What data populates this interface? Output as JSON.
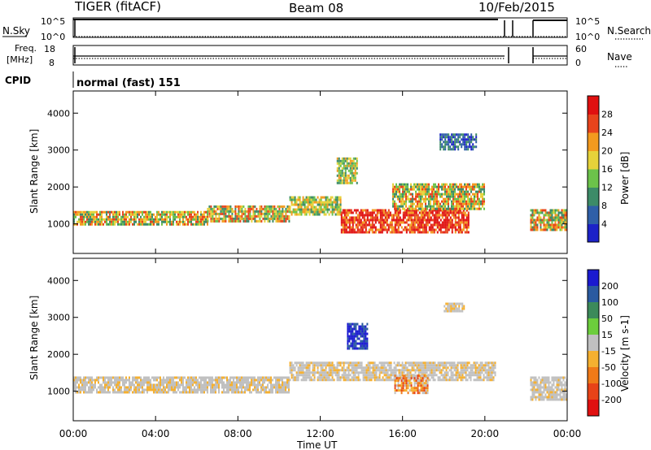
{
  "header": {
    "title": "TIGER (fitACF)",
    "beam": "Beam 08",
    "date": "10/Feb/2015"
  },
  "sky_panel": {
    "label": "N.Sky",
    "tick_top": "10^5",
    "tick_bottom": "10^0",
    "right_label": "N.Search",
    "right_tick_top": "10^5",
    "right_tick_bottom": "10^0"
  },
  "freq_panel": {
    "label_line1": "Freq.",
    "label_line2": "[MHz]",
    "tick_top": "18",
    "tick_bottom": "8",
    "right_label": "Nave",
    "right_tick_top": "60",
    "right_tick_bottom": "0"
  },
  "cpid_panel": {
    "label": "CPID",
    "mode": "normal (fast) 151"
  },
  "chart_data": [
    {
      "type": "heatmap",
      "ylabel": "Slant Range [km]",
      "y_ticks": [
        "1000",
        "2000",
        "3000",
        "4000"
      ],
      "ylim": [
        200,
        4600
      ],
      "xlim_hours": [
        0,
        24
      ],
      "colorbar": {
        "label": "Power [dB]",
        "ticks": [
          "4",
          "8",
          "12",
          "16",
          "20",
          "24",
          "28"
        ],
        "colors": [
          "#1c22c8",
          "#2f5fa8",
          "#3d8b68",
          "#6cc24a",
          "#e6d23a",
          "#f39a1e",
          "#e8441c",
          "#e01010"
        ]
      },
      "echo_regions": [
        {
          "t0": 0.0,
          "t1": 6.5,
          "r0": 1000,
          "r1": 1350,
          "level": "strong"
        },
        {
          "t0": 6.5,
          "t1": 10.5,
          "r0": 1050,
          "r1": 1500,
          "level": "strong"
        },
        {
          "t0": 10.5,
          "t1": 13.0,
          "r0": 1250,
          "r1": 1750,
          "level": "medium"
        },
        {
          "t0": 13.0,
          "t1": 19.2,
          "r0": 800,
          "r1": 1400,
          "level": "strongest"
        },
        {
          "t0": 15.5,
          "t1": 20.0,
          "r0": 1400,
          "r1": 2100,
          "level": "strong"
        },
        {
          "t0": 17.8,
          "t1": 19.6,
          "r0": 3050,
          "r1": 3450,
          "level": "weak"
        },
        {
          "t0": 12.8,
          "t1": 13.8,
          "r0": 2100,
          "r1": 2800,
          "level": "medium"
        },
        {
          "t0": 22.2,
          "t1": 24.0,
          "r0": 850,
          "r1": 1400,
          "level": "strong"
        }
      ]
    },
    {
      "type": "heatmap",
      "ylabel": "Slant Range [km]",
      "y_ticks": [
        "1000",
        "2000",
        "3000",
        "4000"
      ],
      "ylim": [
        200,
        4600
      ],
      "xlabel": "Time UT",
      "x_ticks": [
        "00:00",
        "04:00",
        "08:00",
        "12:00",
        "16:00",
        "20:00",
        "00:00"
      ],
      "xlim_hours": [
        0,
        24
      ],
      "colorbar": {
        "label": "Velocity [m s-1]",
        "ticks": [
          "200",
          "100",
          "50",
          "15",
          "-15",
          "-50",
          "-100",
          "-200"
        ],
        "colors": [
          "#1a1ad0",
          "#2a5aa0",
          "#3c8a5a",
          "#6ccd3c",
          "#c0c0c0",
          "#f5b030",
          "#f07a18",
          "#e84318",
          "#e01010"
        ]
      },
      "echo_regions": [
        {
          "t0": 0.0,
          "t1": 10.5,
          "r0": 1000,
          "r1": 1400,
          "level": "ground"
        },
        {
          "t0": 10.5,
          "t1": 20.5,
          "r0": 1300,
          "r1": 1800,
          "level": "ground"
        },
        {
          "t0": 13.3,
          "t1": 14.3,
          "r0": 2150,
          "r1": 2850,
          "level": "positive"
        },
        {
          "t0": 15.6,
          "t1": 17.2,
          "r0": 950,
          "r1": 1450,
          "level": "negative"
        },
        {
          "t0": 18.0,
          "t1": 19.0,
          "r0": 3150,
          "r1": 3400,
          "level": "ground"
        },
        {
          "t0": 22.2,
          "t1": 24.0,
          "r0": 800,
          "r1": 1400,
          "level": "ground"
        }
      ]
    }
  ]
}
